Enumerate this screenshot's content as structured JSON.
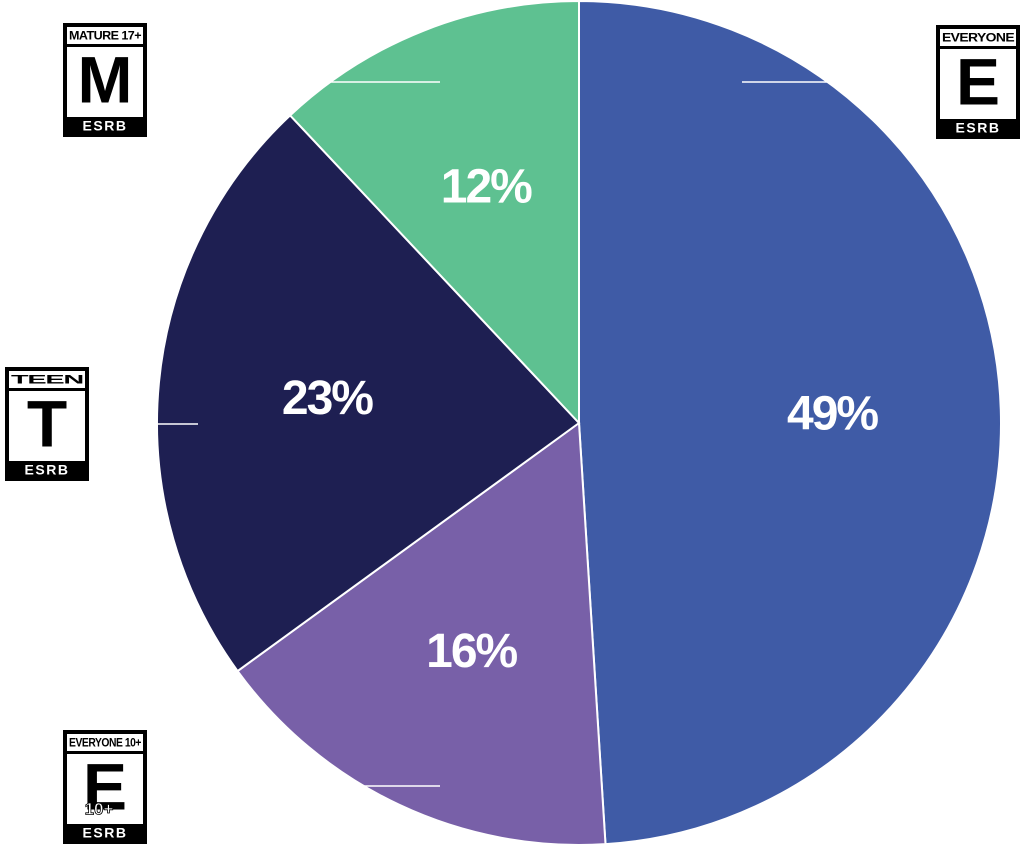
{
  "chart_data": {
    "type": "pie",
    "categories": [
      "EVERYONE",
      "EVERYONE 10+",
      "TEEN",
      "MATURE 17+"
    ],
    "values": [
      49,
      16,
      23,
      12
    ],
    "value_labels": [
      "49%",
      "16%",
      "23%",
      "12%"
    ],
    "colors": [
      "#3f5ba6",
      "#7860a8",
      "#1e1f52",
      "#5ec191"
    ],
    "badges": [
      {
        "letter": "E",
        "brand": "ESRB"
      },
      {
        "letter": "E",
        "extra": "10+",
        "brand": "ESRB"
      },
      {
        "letter": "T",
        "brand": "ESRB"
      },
      {
        "letter": "M",
        "brand": "ESRB"
      }
    ]
  }
}
